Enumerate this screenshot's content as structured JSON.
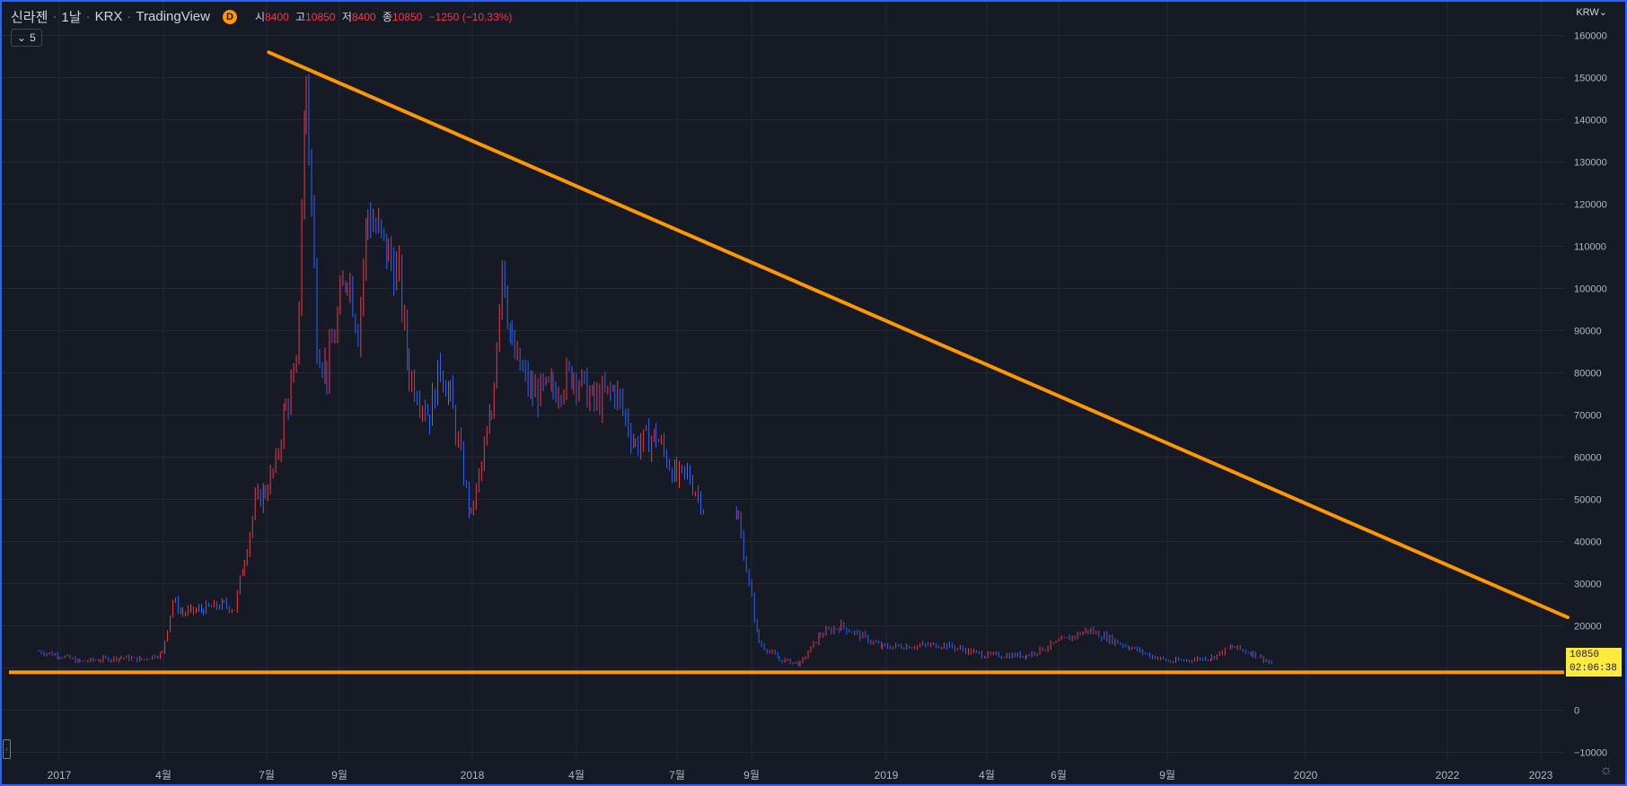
{
  "header": {
    "symbol": "신라젠",
    "interval": "1날",
    "exchange": "KRX",
    "source": "TradingView",
    "badge": "D",
    "open_label": "시",
    "open": "8400",
    "high_label": "고",
    "high": "10850",
    "low_label": "저",
    "low": "8400",
    "close_label": "종",
    "close": "10850",
    "change": "−1250 (−10.33%)",
    "indicator_toggle": "5"
  },
  "currency": "KRW",
  "last_price_tag": {
    "price": "10850",
    "countdown": "02:06:38"
  },
  "colors": {
    "background": "#161a25",
    "grid": "#242836",
    "up": "#f23645",
    "down": "#2962ff",
    "trendline": "#ff9800",
    "price_tag": "#ffeb3b",
    "axis_text": "#b2b5be"
  },
  "icons": {
    "settings": "gear-icon",
    "chevron": "chevron-down-icon"
  },
  "chart_data": {
    "type": "line",
    "ylim": [
      -15000,
      165000
    ],
    "yticks": [
      "160000",
      "150000",
      "140000",
      "130000",
      "120000",
      "110000",
      "100000",
      "90000",
      "80000",
      "70000",
      "60000",
      "50000",
      "40000",
      "30000",
      "20000",
      "10000",
      "0",
      "−10000"
    ],
    "xticks": [
      "2017",
      "4월",
      "7월",
      "9월",
      "2018",
      "4월",
      "7월",
      "9월",
      "2019",
      "4월",
      "6월",
      "9월",
      "2020",
      "2022",
      "2023"
    ],
    "grid": true,
    "series": [
      {
        "x": [
          "2016-12",
          "2017-01",
          "2017-02",
          "2017-03",
          "2017-04",
          "2017-05",
          "2017-06",
          "2017-06",
          "2017-07",
          "2017-08",
          "2017-09",
          "2017-09",
          "2017-10",
          "2017-10",
          "2017-11",
          "2017-11",
          "2017-12",
          "2017-12",
          "2018-01",
          "2018-01",
          "2018-02",
          "2018-03",
          "2018-03",
          "2018-04",
          "2018-05",
          "2018-05",
          "2018-06",
          "2018-07",
          "2018-07",
          "2018-08",
          "2018-09",
          "2018-09",
          "2018-10",
          "2018-10",
          "2018-11",
          "2018-12",
          "2019-01",
          "2019-02",
          "2019-03",
          "2019-04",
          "2019-05",
          "2019-06",
          "2019-07",
          "2019-07",
          "2019-09",
          "2019-10",
          "2019-11",
          "2019-12",
          "2020-01",
          "2020-02",
          "2020-03",
          "2020-05",
          "2020-08",
          "2020-10",
          "2020-12",
          "2021-03",
          "2021-05",
          "2021-06",
          "2021-07",
          "2021-09",
          "2021-10",
          "2021-11",
          "2021-12"
        ],
        "close": [
          14000,
          13000,
          11500,
          12000,
          12500,
          12000,
          13500,
          26000,
          23000,
          24000,
          25000,
          24000,
          36000,
          49000,
          52000,
          58000,
          72000,
          80000,
          150000,
          88000,
          80000,
          105000,
          90000,
          118000,
          108000,
          102000,
          80000,
          70000,
          82000,
          74000,
          46000,
          58000,
          70000,
          108000,
          85000,
          75000,
          76000,
          80000,
          73000,
          76000,
          63000,
          65000,
          55000,
          56000,
          42000,
          45000,
          16000,
          12000,
          11000,
          18000,
          20000,
          15000,
          15500,
          13000,
          13000,
          19000,
          15000,
          13000,
          11500,
          12500,
          15000,
          13500,
          10850
        ]
      }
    ],
    "trendlines": [
      {
        "name": "descending resistance",
        "from": [
          "2017-09",
          "156000"
        ],
        "to": [
          "2023-01",
          "22000"
        ]
      },
      {
        "name": "horizontal support",
        "level": 9000
      }
    ]
  }
}
